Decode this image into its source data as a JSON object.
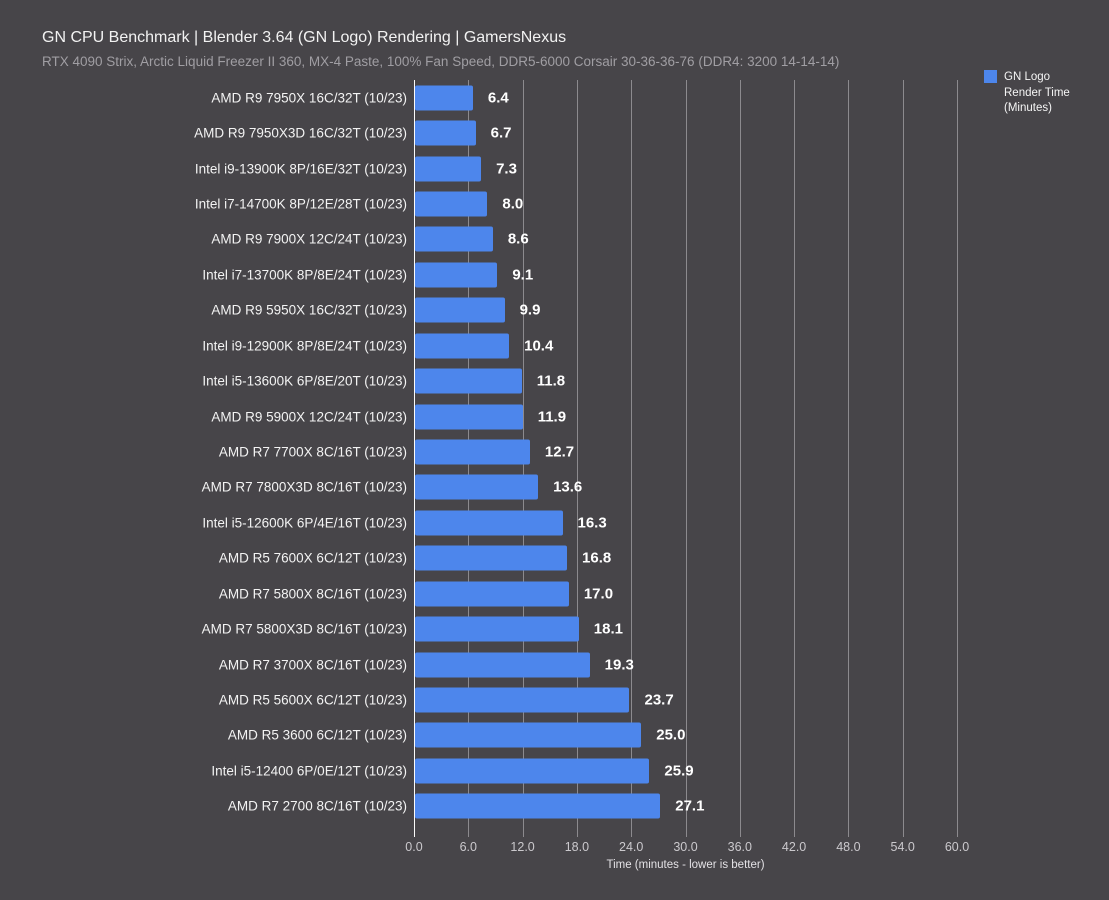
{
  "header": {
    "title": "GN CPU Benchmark | Blender 3.64 (GN Logo) Rendering | GamersNexus",
    "subtitle": "RTX 4090 Strix, Arctic Liquid Freezer II 360, MX-4 Paste, 100% Fan Speed, DDR5-6000 Corsair 30-36-36-76 (DDR4: 3200 14-14-14)"
  },
  "legend": {
    "label": "GN Logo Render Time (Minutes)",
    "swatch_color": "#4d86ec",
    "position": "top-right"
  },
  "chart_data": {
    "type": "bar",
    "orientation": "horizontal",
    "title": "GN CPU Benchmark | Blender 3.64 (GN Logo) Rendering | GamersNexus",
    "subtitle": "RTX 4090 Strix, Arctic Liquid Freezer II 360, MX-4 Paste, 100% Fan Speed, DDR5-6000 Corsair 30-36-36-76 (DDR4: 3200 14-14-14)",
    "series_name": "GN Logo Render Time (Minutes)",
    "categories": [
      "AMD R9 7950X 16C/32T (10/23)",
      "AMD R9 7950X3D 16C/32T (10/23)",
      "Intel i9-13900K 8P/16E/32T (10/23)",
      "Intel i7-14700K 8P/12E/28T (10/23)",
      "AMD R9 7900X 12C/24T (10/23)",
      "Intel i7-13700K 8P/8E/24T (10/23)",
      "AMD R9 5950X 16C/32T (10/23)",
      "Intel i9-12900K 8P/8E/24T (10/23)",
      "Intel i5-13600K 6P/8E/20T (10/23)",
      "AMD R9 5900X 12C/24T (10/23)",
      "AMD R7 7700X 8C/16T (10/23)",
      "AMD R7 7800X3D 8C/16T (10/23)",
      "Intel i5-12600K 6P/4E/16T (10/23)",
      "AMD R5 7600X 6C/12T (10/23)",
      "AMD R7 5800X 8C/16T (10/23)",
      "AMD R7 5800X3D 8C/16T (10/23)",
      "AMD R7 3700X 8C/16T (10/23)",
      "AMD R5 5600X 6C/12T (10/23)",
      "AMD R5 3600 6C/12T (10/23)",
      "Intel i5-12400 6P/0E/12T (10/23)",
      "AMD R7 2700 8C/16T (10/23)"
    ],
    "values": [
      6.4,
      6.7,
      7.3,
      8.0,
      8.6,
      9.1,
      9.9,
      10.4,
      11.8,
      11.9,
      12.7,
      13.6,
      16.3,
      16.8,
      17.0,
      18.1,
      19.3,
      23.7,
      25.0,
      25.9,
      27.1
    ],
    "value_decimals": 1,
    "xlabel": "Time (minutes - lower is better)",
    "xlim": [
      0,
      60
    ],
    "xtick_labels": [
      "0.0",
      "6.0",
      "12.0",
      "18.0",
      "24.0",
      "30.0",
      "36.0",
      "42.0",
      "48.0",
      "54.0",
      "60.0"
    ],
    "xtick_values": [
      0,
      6,
      12,
      18,
      24,
      30,
      36,
      42,
      48,
      54,
      60
    ],
    "grid": true,
    "legend_position": "top-right",
    "bar_color": "#4d86ec",
    "background_color": "#474549",
    "gridline_color": "#8c8a8e"
  }
}
